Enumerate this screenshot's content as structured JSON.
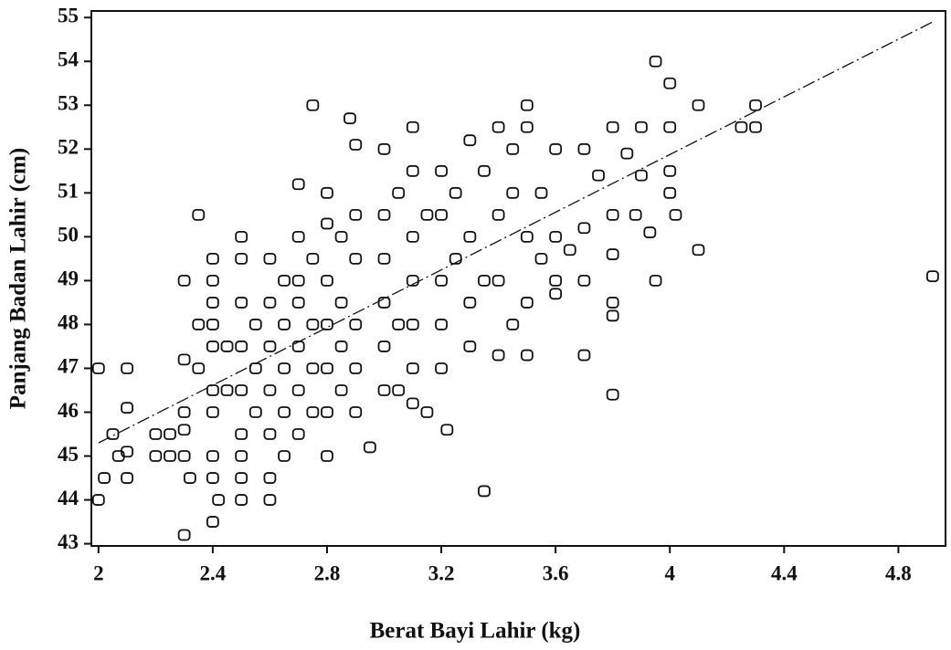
{
  "chart_data": {
    "type": "scatter",
    "xlabel": "Berat Bayi Lahir (kg)",
    "ylabel": "Panjang Badan Lahir (cm)",
    "xlim": [
      1.975,
      4.965
    ],
    "ylim": [
      42.95,
      55.15
    ],
    "xticks": [
      2,
      2.4,
      2.8,
      3.2,
      3.6,
      4,
      4.4,
      4.8
    ],
    "yticks": [
      43,
      44,
      45,
      46,
      47,
      48,
      49,
      50,
      51,
      52,
      53,
      54,
      55
    ],
    "color": "#111111",
    "x": [
      2,
      2,
      2.02,
      2.05,
      2.07,
      2.1,
      2.1,
      2.1,
      2.1,
      2.2,
      2.2,
      2.25,
      2.25,
      2.3,
      2.3,
      2.3,
      2.3,
      2.3,
      2.3,
      2.32,
      2.35,
      2.35,
      2.35,
      2.4,
      2.4,
      2.4,
      2.4,
      2.4,
      2.4,
      2.4,
      2.4,
      2.4,
      2.4,
      2.42,
      2.45,
      2.45,
      2.5,
      2.5,
      2.5,
      2.5,
      2.5,
      2.5,
      2.5,
      2.5,
      2.5,
      2.55,
      2.55,
      2.55,
      2.6,
      2.6,
      2.6,
      2.6,
      2.6,
      2.6,
      2.6,
      2.65,
      2.65,
      2.65,
      2.65,
      2.65,
      2.7,
      2.7,
      2.7,
      2.7,
      2.7,
      2.7,
      2.7,
      2.75,
      2.75,
      2.75,
      2.75,
      2.75,
      2.8,
      2.8,
      2.8,
      2.8,
      2.8,
      2.8,
      2.8,
      2.85,
      2.85,
      2.85,
      2.85,
      2.88,
      2.9,
      2.9,
      2.9,
      2.9,
      2.9,
      2.9,
      2.95,
      3,
      3,
      3,
      3,
      3,
      3,
      3.05,
      3.05,
      3.05,
      3.1,
      3.1,
      3.1,
      3.1,
      3.1,
      3.1,
      3.1,
      3.15,
      3.15,
      3.2,
      3.2,
      3.2,
      3.2,
      3.2,
      3.22,
      3.25,
      3.25,
      3.3,
      3.3,
      3.3,
      3.3,
      3.35,
      3.35,
      3.35,
      3.4,
      3.4,
      3.4,
      3.4,
      3.45,
      3.45,
      3.45,
      3.5,
      3.5,
      3.5,
      3.5,
      3.5,
      3.55,
      3.55,
      3.6,
      3.6,
      3.6,
      3.6,
      3.65,
      3.7,
      3.7,
      3.7,
      3.7,
      3.75,
      3.8,
      3.8,
      3.8,
      3.8,
      3.8,
      3.8,
      3.85,
      3.88,
      3.9,
      3.9,
      3.93,
      3.95,
      3.95,
      4,
      4,
      4,
      4,
      4.02,
      4.1,
      4.1,
      4.25,
      4.3,
      4.3,
      4.92
    ],
    "values": [
      47,
      44,
      44.5,
      45.5,
      45,
      47,
      46.1,
      45.1,
      44.5,
      45.5,
      45,
      45.5,
      45,
      43.2,
      49,
      47.2,
      46,
      45.6,
      45,
      44.5,
      50.5,
      48,
      47,
      49.5,
      49,
      48.5,
      48,
      47.5,
      46.5,
      46,
      45,
      44.5,
      43.5,
      44,
      47.5,
      46.5,
      50,
      49.5,
      48.5,
      47.5,
      46.5,
      45.5,
      45,
      44.5,
      44,
      48,
      47,
      46,
      49.5,
      48.5,
      47.5,
      46.5,
      45.5,
      44.5,
      44,
      49,
      48,
      47,
      46,
      45,
      51.2,
      50,
      49,
      48.5,
      47.5,
      46.5,
      45.5,
      53,
      49.5,
      48,
      47,
      46,
      51,
      50.3,
      49,
      48,
      47,
      46,
      45,
      50,
      48.5,
      47.5,
      46.5,
      52.7,
      52.1,
      50.5,
      49.5,
      48,
      47,
      46,
      45.2,
      52,
      50.5,
      49.5,
      48.5,
      47.5,
      46.5,
      51,
      48,
      46.5,
      52.5,
      51.5,
      50,
      49,
      48,
      47,
      46.2,
      50.5,
      46,
      51.5,
      50.5,
      49,
      48,
      47,
      45.6,
      51,
      49.5,
      52.2,
      50,
      48.5,
      47.5,
      44.2,
      51.5,
      49,
      52.5,
      50.5,
      49,
      47.3,
      52,
      51,
      48,
      53,
      52.5,
      50,
      48.5,
      47.3,
      51,
      49.5,
      52,
      50,
      49,
      48.7,
      49.7,
      52,
      50.2,
      49,
      47.3,
      51.4,
      52.5,
      50.5,
      49.6,
      48.5,
      48.2,
      46.4,
      51.9,
      50.5,
      52.5,
      51.4,
      50.1,
      54,
      49,
      53.5,
      52.5,
      51.5,
      51,
      50.5,
      53,
      49.7,
      52.5,
      53,
      52.5,
      49.1
    ],
    "trend": {
      "x": [
        2,
        4.92
      ],
      "values": [
        45.3,
        54.9
      ]
    }
  }
}
